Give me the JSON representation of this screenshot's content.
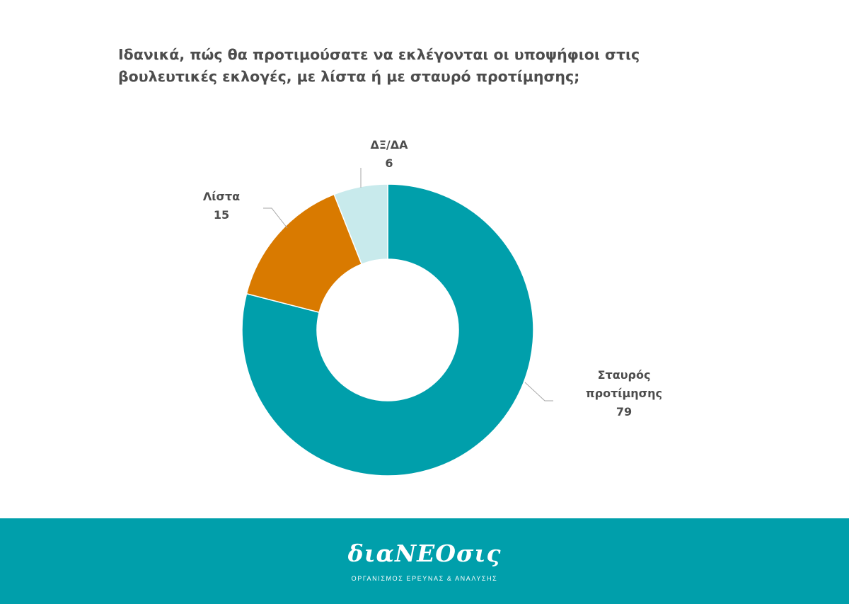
{
  "chart_data": {
    "type": "pie",
    "variant": "donut",
    "title": "Ιδανικά, πώς θα προτιμούσατε να εκλέγονται οι υποψήφιοι στις βουλευτικές εκλογές, με λίστα ή με σταυρό προτίμησης;",
    "slices": [
      {
        "label_lines": [
          "Σταυρός",
          "προτίμησης"
        ],
        "value": 79,
        "color": "#009fab"
      },
      {
        "label_lines": [
          "Λίστα"
        ],
        "value": 15,
        "color": "#d97a00"
      },
      {
        "label_lines": [
          "ΔΞ/ΔΑ"
        ],
        "value": 6,
        "color": "#c8eaec"
      }
    ]
  },
  "footer": {
    "logo": "διαΝΕΟσις",
    "tagline": "ΟΡΓΑΝΙΣΜΟΣ ΕΡΕΥΝΑΣ & ΑΝΑΛΥΣΗΣ",
    "color": "#009fab"
  }
}
